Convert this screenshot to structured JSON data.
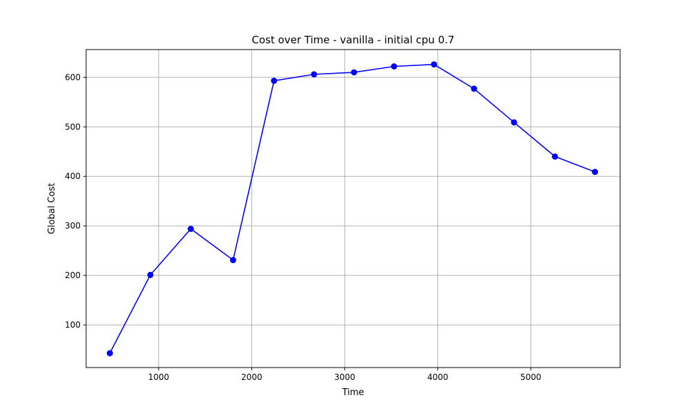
{
  "chart_data": {
    "type": "line",
    "title": "Cost over Time - vanilla - initial cpu 0.7",
    "xlabel": "Time",
    "ylabel": "Global Cost",
    "xlim": [
      220,
      5960
    ],
    "ylim": [
      14,
      656
    ],
    "xticks": [
      1000,
      2000,
      3000,
      4000,
      5000
    ],
    "yticks": [
      100,
      200,
      300,
      400,
      500,
      600
    ],
    "grid": true,
    "series": [
      {
        "color": "#0000ff",
        "marker": "circle",
        "x": [
          475,
          910,
          1345,
          1800,
          2240,
          2670,
          3100,
          3530,
          3960,
          4390,
          4820,
          5260,
          5690
        ],
        "y": [
          43,
          201,
          294,
          231,
          593,
          606,
          610,
          622,
          626,
          577,
          509,
          440,
          409
        ]
      }
    ]
  }
}
